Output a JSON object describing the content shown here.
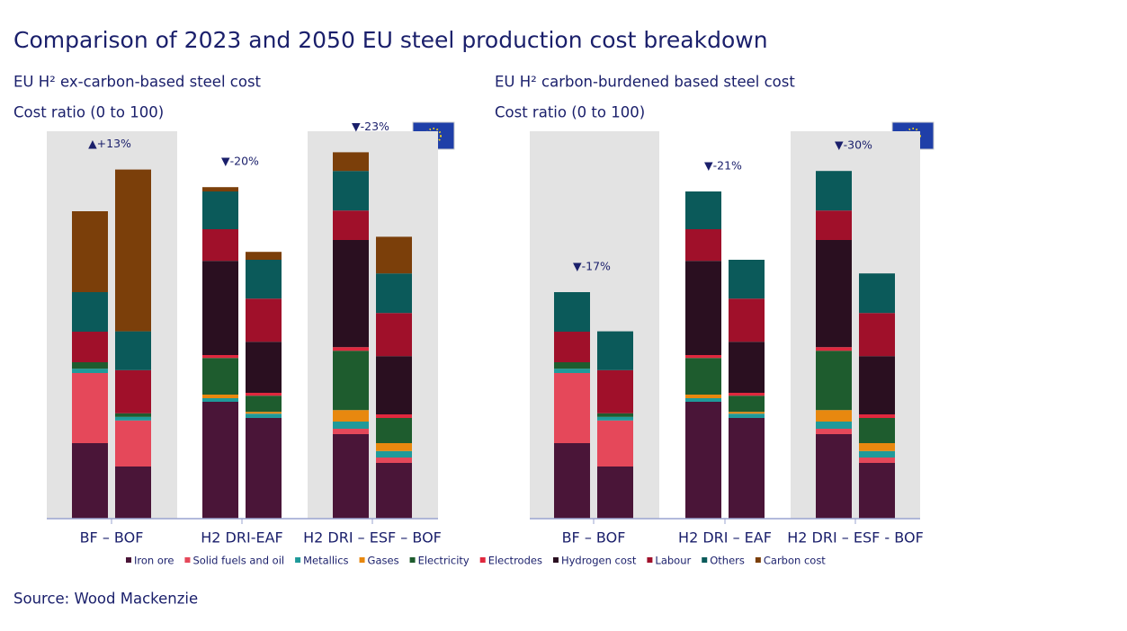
{
  "title": "Comparison of 2023 and 2050 EU steel production cost breakdown",
  "source": "Source: Wood Mackenzie",
  "chart_data": [
    {
      "type": "bar",
      "stacked": true,
      "subtitle": "EU H² ex-carbon-based steel cost",
      "y_label": "Cost ratio (0 to 100)",
      "ylim": [
        0,
        100
      ],
      "categories": [
        "BF – BOF",
        "H2 DRI-EAF",
        "H2 DRI – ESF – BOF"
      ],
      "annotations": [
        "▲+13%",
        "▼-20%",
        "▼-23%"
      ],
      "series": [
        {
          "name": "Iron ore",
          "color": "#4a1538",
          "values": [
            [
              21,
              14.5
            ],
            [
              32.5,
              28
            ],
            [
              23.5,
              15.5
            ]
          ]
        },
        {
          "name": "Solid fuels and oil",
          "color": "#e5485a",
          "values": [
            [
              19.5,
              12.8
            ],
            [
              0,
              0
            ],
            [
              1.5,
              1.5
            ]
          ]
        },
        {
          "name": "Metallics",
          "color": "#1f9a9a",
          "values": [
            [
              1.2,
              1
            ],
            [
              1,
              1.2
            ],
            [
              2,
              1.8
            ]
          ]
        },
        {
          "name": "Gases",
          "color": "#e8880f",
          "values": [
            [
              0,
              0
            ],
            [
              1,
              0.5
            ],
            [
              3.2,
              2.2
            ]
          ]
        },
        {
          "name": "Electricity",
          "color": "#1e5c2e",
          "values": [
            [
              1.8,
              1
            ],
            [
              10.2,
              4.5
            ],
            [
              16.5,
              7
            ]
          ]
        },
        {
          "name": "Electrodes",
          "color": "#e0283e",
          "values": [
            [
              0,
              0
            ],
            [
              0.8,
              0.8
            ],
            [
              1,
              1
            ]
          ]
        },
        {
          "name": "Hydrogen cost",
          "color": "#2a0f20",
          "values": [
            [
              0,
              0
            ],
            [
              26.2,
              14.2
            ],
            [
              29.8,
              16.2
            ]
          ]
        },
        {
          "name": "Labour",
          "color": "#a0102a",
          "values": [
            [
              8.5,
              12
            ],
            [
              8.8,
              12
            ],
            [
              8.2,
              12
            ]
          ]
        },
        {
          "name": "Others",
          "color": "#0b5a5a",
          "values": [
            [
              11,
              10.8
            ],
            [
              10.5,
              10.8
            ],
            [
              11,
              11
            ]
          ]
        },
        {
          "name": "Carbon cost",
          "color": "#7b3f0a",
          "values": [
            [
              22.5,
              45
            ],
            [
              1.2,
              2.2
            ],
            [
              5.2,
              10.2
            ]
          ]
        }
      ]
    },
    {
      "type": "bar",
      "stacked": true,
      "subtitle": "EU H² carbon-burdened based steel cost",
      "y_label": "Cost ratio (0 to 100)",
      "ylim": [
        0,
        100
      ],
      "categories": [
        "BF – BOF",
        "H2 DRI – EAF",
        "H2 DRI – ESF - BOF"
      ],
      "annotations": [
        "▼-17%",
        "▼-21%",
        "▼-30%"
      ],
      "series": [
        {
          "name": "Iron ore",
          "color": "#4a1538",
          "values": [
            [
              21,
              14.5
            ],
            [
              32.5,
              28
            ],
            [
              23.5,
              15.5
            ]
          ]
        },
        {
          "name": "Solid fuels and oil",
          "color": "#e5485a",
          "values": [
            [
              19.5,
              12.8
            ],
            [
              0,
              0
            ],
            [
              1.5,
              1.5
            ]
          ]
        },
        {
          "name": "Metallics",
          "color": "#1f9a9a",
          "values": [
            [
              1.2,
              1
            ],
            [
              1,
              1.2
            ],
            [
              2,
              1.8
            ]
          ]
        },
        {
          "name": "Gases",
          "color": "#e8880f",
          "values": [
            [
              0,
              0
            ],
            [
              1,
              0.5
            ],
            [
              3.2,
              2.2
            ]
          ]
        },
        {
          "name": "Electricity",
          "color": "#1e5c2e",
          "values": [
            [
              1.8,
              1
            ],
            [
              10.2,
              4.5
            ],
            [
              16.5,
              7
            ]
          ]
        },
        {
          "name": "Electrodes",
          "color": "#e0283e",
          "values": [
            [
              0,
              0
            ],
            [
              0.8,
              0.8
            ],
            [
              1,
              1
            ]
          ]
        },
        {
          "name": "Hydrogen cost",
          "color": "#2a0f20",
          "values": [
            [
              0,
              0
            ],
            [
              26.2,
              14.2
            ],
            [
              29.8,
              16.2
            ]
          ]
        },
        {
          "name": "Labour",
          "color": "#a0102a",
          "values": [
            [
              8.5,
              12
            ],
            [
              8.8,
              12
            ],
            [
              8.2,
              12
            ]
          ]
        },
        {
          "name": "Others",
          "color": "#0b5a5a",
          "values": [
            [
              11,
              10.8
            ],
            [
              10.5,
              10.8
            ],
            [
              11,
              11
            ]
          ]
        },
        {
          "name": "Carbon cost",
          "color": "#7b3f0a",
          "values": [
            [
              0,
              0
            ],
            [
              0,
              0
            ],
            [
              0,
              0
            ]
          ]
        }
      ]
    }
  ]
}
